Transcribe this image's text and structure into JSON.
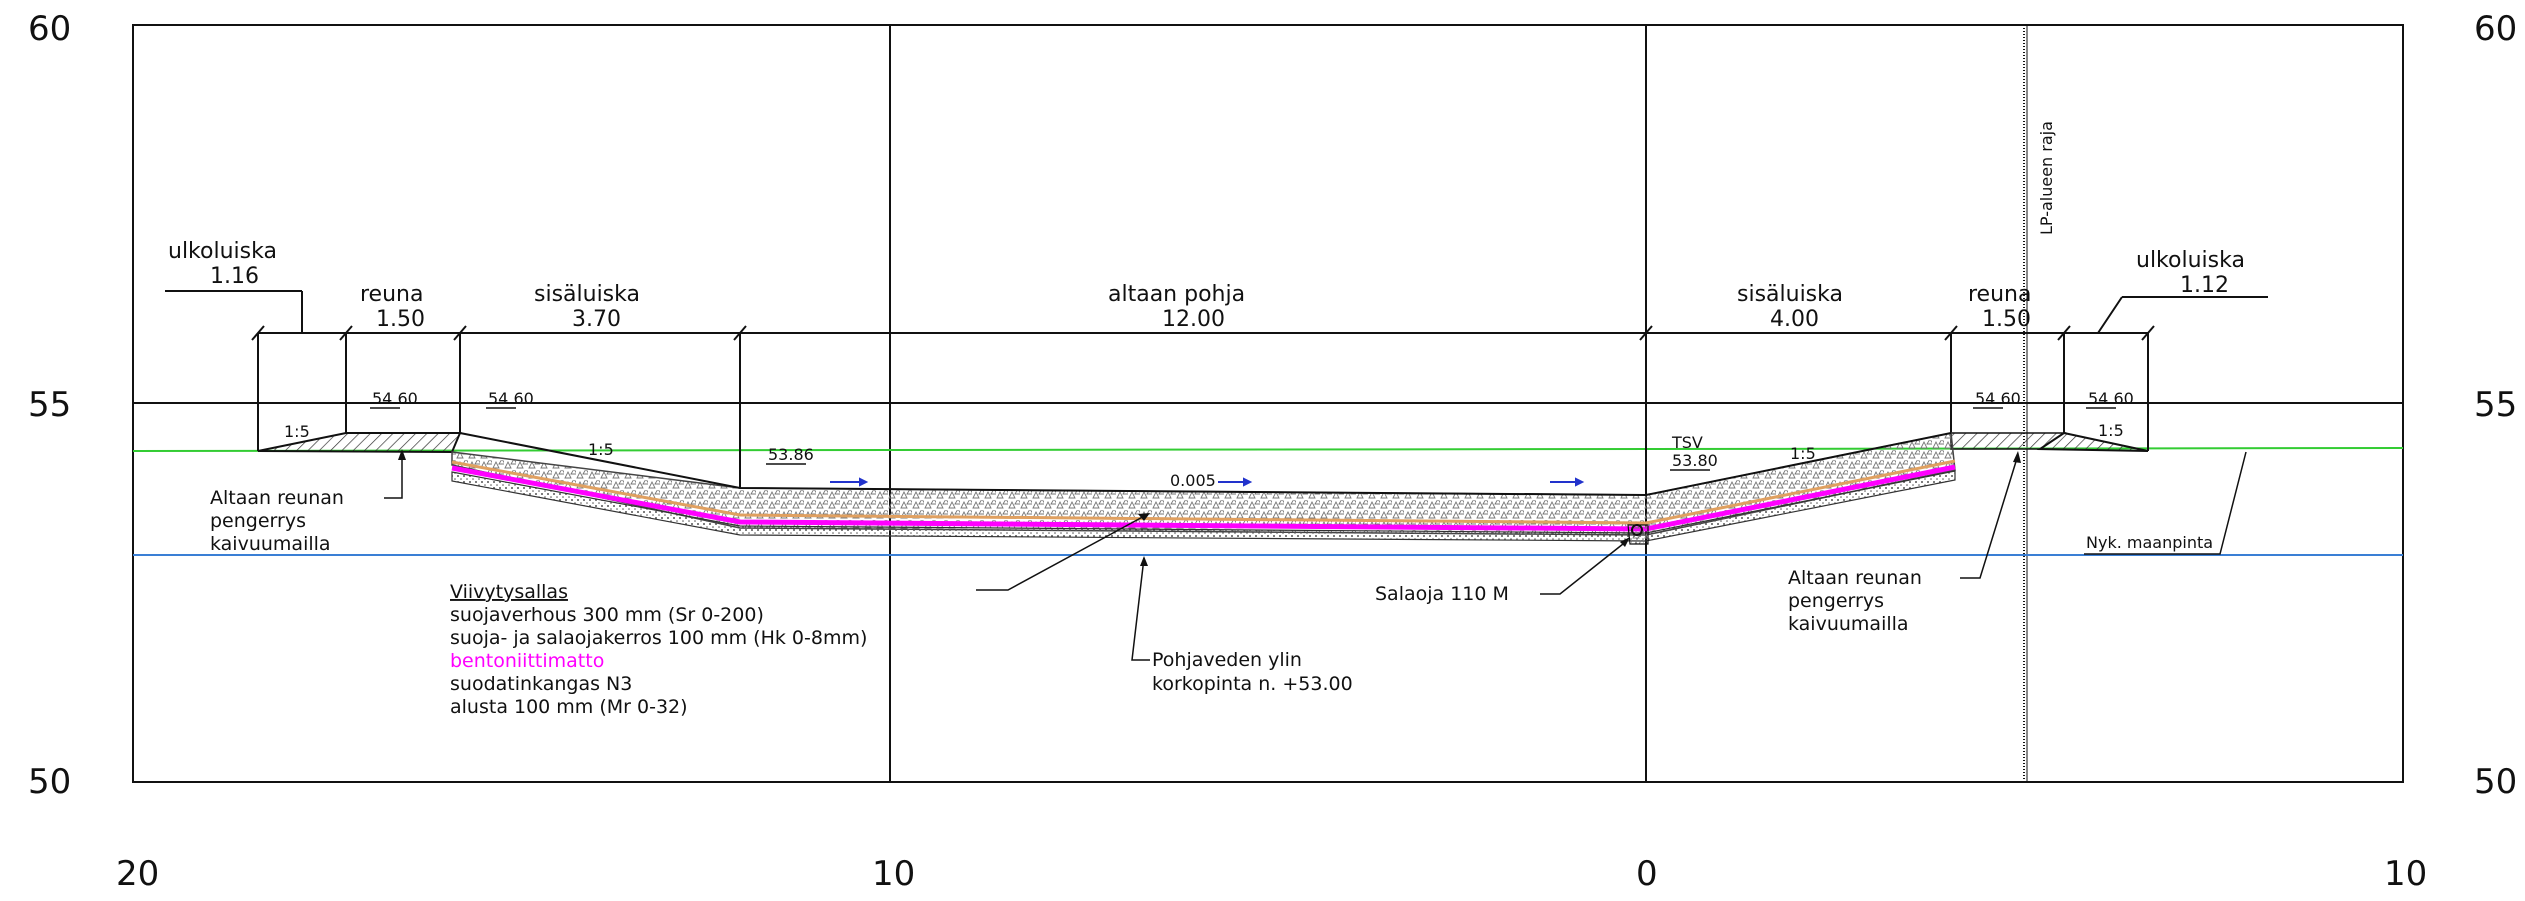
{
  "axis": {
    "y_left": [
      "60",
      "55",
      "50"
    ],
    "y_right": [
      "60",
      "55",
      "50"
    ],
    "x": [
      "20",
      "10",
      "0",
      "10"
    ]
  },
  "dimensions": {
    "left_ulkoluiska": {
      "name": "ulkoluiska",
      "value": "1.16"
    },
    "left_reuna": {
      "name": "reuna",
      "value": "1.50"
    },
    "left_sisaluiska": {
      "name": "sisäluiska",
      "value": "3.70"
    },
    "pohja": {
      "name": "altaan pohja",
      "value": "12.00"
    },
    "right_sisaluiska": {
      "name": "sisäluiska",
      "value": "4.00"
    },
    "right_reuna": {
      "name": "reuna",
      "value": "1.50"
    },
    "right_ulkoluiska": {
      "name": "ulkoluiska",
      "value": "1.12"
    }
  },
  "levels": {
    "left_crest_1": "54.60",
    "left_crest_2": "54.60",
    "left_bottom": "53.86",
    "right_bottom": "53.80",
    "right_crest_1": "54.60",
    "right_crest_2": "54.60",
    "slope": "0.005",
    "tsv": "TSV"
  },
  "slope_ratios": {
    "left_outer": "1:5",
    "left_inner": "1:5",
    "right_inner": "1:5",
    "right_outer": "1:5"
  },
  "labels": {
    "lp_boundary": "LP-alueen raja",
    "existing_ground": "Nyk. maanpinta",
    "left_embankment": [
      "Altaan reunan",
      "pengerrys",
      "kaivuumailla"
    ],
    "right_embankment": [
      "Altaan reunan",
      "pengerrys",
      "kaivuumailla"
    ],
    "drain": "Salaoja 110 M",
    "groundwater": [
      "Pohjaveden ylin",
      "korkopinta n. +53.00"
    ]
  },
  "layers": {
    "title": "Viivytysallas",
    "items": [
      {
        "text": "suojaverhous 300 mm (Sr 0-200)",
        "color": "#111111"
      },
      {
        "text": "suoja- ja salaojakerros 100 mm (Hk 0-8mm)",
        "color": "#111111"
      },
      {
        "text": "bentoniittimatto",
        "color": "#ff00ff"
      },
      {
        "text": "suodatinkangas N3",
        "color": "#111111"
      },
      {
        "text": "alusta 100 mm (Mr 0-32)",
        "color": "#111111"
      }
    ]
  },
  "colors": {
    "existing_ground_line": "#33cc33",
    "groundwater_line": "#3a7fd5",
    "bentonite": "#ff00ff",
    "flow_arrow": "#2233cc",
    "filter_layer": "#e0a060"
  }
}
